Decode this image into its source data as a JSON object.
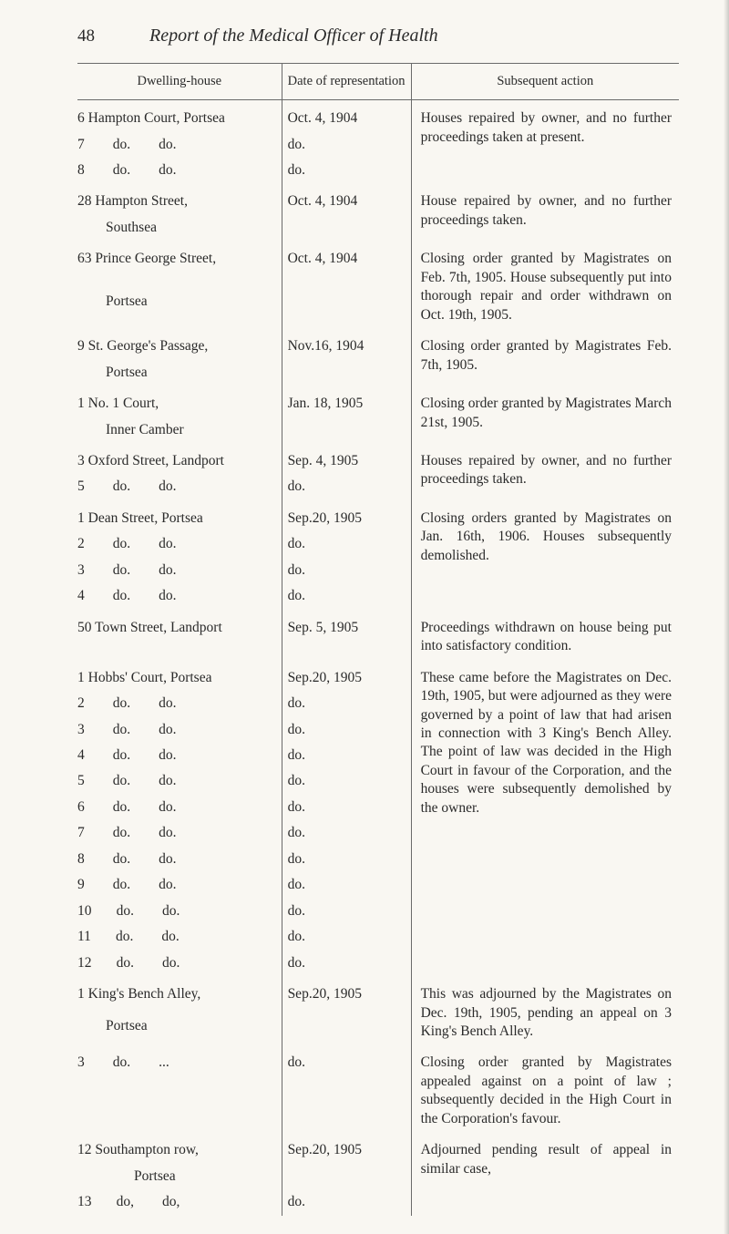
{
  "page_number": "48",
  "running_title": "Report of the Medical Officer of Health",
  "headers": {
    "dwelling": "Dwelling-house",
    "date": "Date of representation",
    "action": "Subsequent action"
  },
  "groups": [
    {
      "dwelling_lines": [
        "6 Hampton Court, Portsea",
        "7        do.        do.",
        "8        do.        do."
      ],
      "date_lines": [
        "Oct. 4, 1904",
        "do.",
        "do."
      ],
      "action": "Houses repaired by owner, and no further proceedings taken at present."
    },
    {
      "dwelling_lines": [
        "28 Hampton Street,",
        "        Southsea"
      ],
      "date_lines": [
        "Oct. 4, 1904"
      ],
      "action": "House repaired by owner, and no further proceedings taken."
    },
    {
      "dwelling_lines": [
        "63 Prince George Street,",
        "        Portsea"
      ],
      "date_lines": [
        "Oct. 4, 1904"
      ],
      "action": "Closing order granted by Magistrates on Feb. 7th, 1905. House subsequently put into thorough repair and order withdrawn on Oct. 19th, 1905."
    },
    {
      "dwelling_lines": [
        "9 St. George's Passage,",
        "        Portsea"
      ],
      "date_lines": [
        "Nov.16, 1904"
      ],
      "action": "Closing order granted by Magistrates Feb. 7th, 1905."
    },
    {
      "dwelling_lines": [
        "1 No. 1 Court,",
        "        Inner Camber"
      ],
      "date_lines": [
        "Jan. 18, 1905"
      ],
      "action": "Closing order granted by Magistrates March 21st, 1905."
    },
    {
      "dwelling_lines": [
        "3 Oxford Street, Landport",
        "5        do.        do."
      ],
      "date_lines": [
        "Sep. 4, 1905",
        "do."
      ],
      "action": "Houses repaired by owner, and no further proceedings taken."
    },
    {
      "dwelling_lines": [
        "1 Dean Street, Portsea",
        "2        do.        do.",
        "3        do.        do.",
        "4        do.        do."
      ],
      "date_lines": [
        "Sep.20, 1905",
        "do.",
        "do.",
        "do."
      ],
      "action": "Closing orders granted by Magistrates on Jan. 16th, 1906. Houses subsequently demolished."
    },
    {
      "dwelling_lines": [
        "50 Town Street, Landport"
      ],
      "date_lines": [
        "Sep. 5, 1905"
      ],
      "action": "Proceedings withdrawn on house being put into satisfactory condition."
    },
    {
      "dwelling_lines": [
        "1 Hobbs' Court, Portsea",
        "2        do.        do.",
        "3        do.        do.",
        "4        do.        do.",
        "5        do.        do.",
        "6        do.        do.",
        "7        do.        do.",
        "8        do.        do.",
        "9        do.        do.",
        "10       do.        do.",
        "11       do.        do.",
        "12       do.        do."
      ],
      "date_lines": [
        "Sep.20, 1905",
        "do.",
        "do.",
        "do.",
        "do.",
        "do.",
        "do.",
        "do.",
        "do.",
        "do.",
        "do.",
        "do."
      ],
      "action": "These came before the Magistrates on Dec. 19th, 1905, but were adjourned as they were governed by a point of law that had arisen in connection with 3 King's Bench Alley. The point of law was decided in the High Court in favour of the Corporation, and the houses were subsequently demolished by the owner."
    },
    {
      "dwelling_lines": [
        "1 King's Bench Alley,",
        "        Portsea"
      ],
      "date_lines": [
        "Sep.20, 1905"
      ],
      "action": "This was adjourned by the Magistrates on Dec. 19th, 1905, pending an appeal on 3 King's Bench Alley."
    },
    {
      "dwelling_lines": [
        "3        do.        ..."
      ],
      "date_lines": [
        "do."
      ],
      "action": "Closing order granted by Magistrates appealed against on a point of law ; subsequently decided in the High Court in the Corporation's favour."
    },
    {
      "dwelling_lines": [
        "12 Southampton row,",
        "                Portsea",
        "13       do,        do,"
      ],
      "date_lines": [
        "Sep.20, 1905",
        "",
        "do."
      ],
      "action": "Adjourned pending result of appeal in similar case,"
    }
  ]
}
